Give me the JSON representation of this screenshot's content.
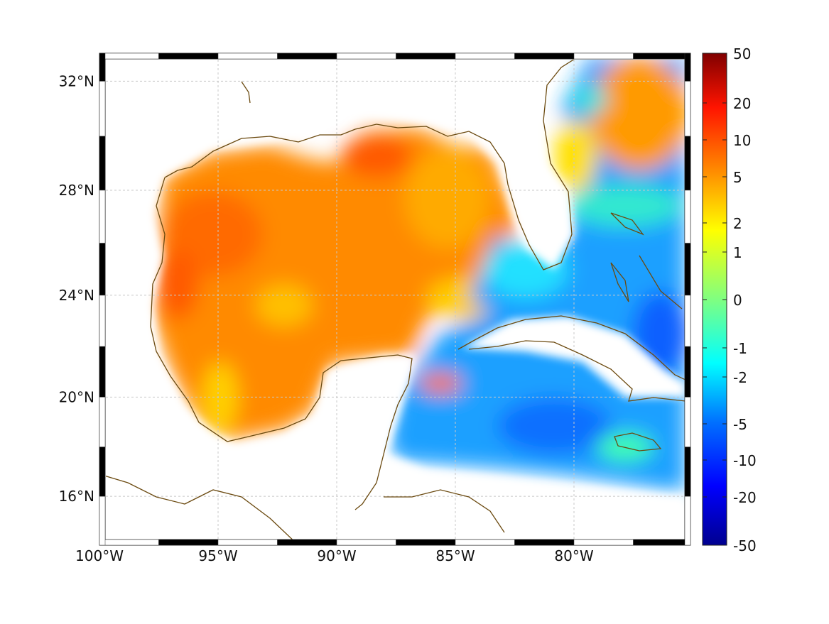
{
  "map": {
    "lon_labels": [
      "100°W",
      "95°W",
      "90°W",
      "85°W",
      "80°W"
    ],
    "lat_labels": [
      "32°N",
      "28°N",
      "24°N",
      "20°N",
      "16°N"
    ],
    "lon_values": [
      -100,
      -95,
      -90,
      -85,
      -80
    ],
    "lat_values": [
      32,
      28,
      24,
      20,
      16
    ],
    "extent": {
      "lon": [
        -100,
        -75
      ],
      "lat": [
        14,
        33
      ]
    },
    "coast_color": "#6b4a10",
    "grid_color": "#c8c8c8"
  },
  "colorbar": {
    "ticks": [
      "50",
      "20",
      "10",
      "5",
      "2",
      "1",
      "0",
      "-1",
      "-2",
      "-5",
      "-10",
      "-20",
      "-50"
    ],
    "colormap": "jet",
    "range": [
      -50,
      50
    ]
  }
}
